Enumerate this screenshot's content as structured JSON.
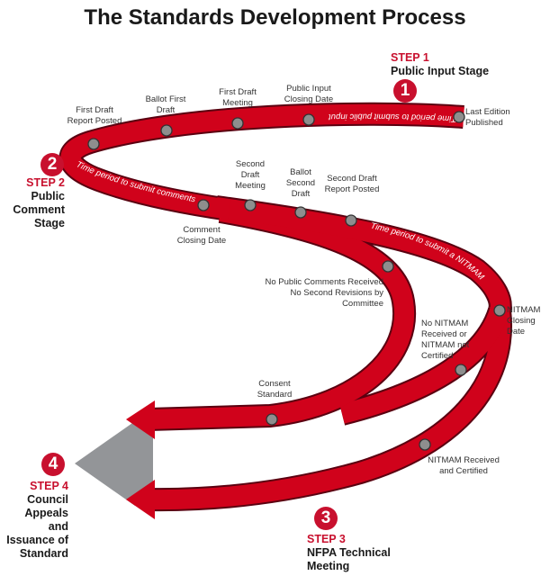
{
  "title": "The Standards Development Process",
  "colors": {
    "ribbon": "#d0021b",
    "outline": "#5a0010",
    "milestone": "#8e8e8e",
    "step_accent": "#c8102e",
    "target": "#939598"
  },
  "steps": [
    {
      "badge": "1",
      "label": "STEP 1",
      "name": "Public Input Stage"
    },
    {
      "badge": "2",
      "label": "STEP 2",
      "name": "Public Comment Stage"
    },
    {
      "badge": "3",
      "label": "STEP 3",
      "name": "NFPA Technical Meeting"
    },
    {
      "badge": "4",
      "label": "STEP 4",
      "name": "Council Appeals and Issuance of Standard"
    }
  ],
  "ribbon_text": {
    "public_input": "Time period to submit public input",
    "comments": "Time period to submit comments",
    "nitmam": "Time period to submit a NITMAM"
  },
  "milestones": {
    "last_edition": "Last Edition Published",
    "public_input_closing": "Public Input Closing Date",
    "first_draft_meeting": "First Draft Meeting",
    "ballot_first_draft": "Ballot First Draft",
    "first_draft_report": "First Draft Report Posted",
    "comment_closing": "Comment Closing Date",
    "second_draft_meeting": "Second Draft Meeting",
    "ballot_second_draft": "Ballot Second Draft",
    "second_draft_report": "Second Draft Report Posted",
    "no_public_comments": "No Public Comments Received No Second Revisions by Committee",
    "nitmam_closing": "NITMAM Closing Date",
    "no_nitmam": "No NITMAM Received or NITMAM not Certified",
    "consent_standard": "Consent Standard",
    "nitmam_received": "NITMAM Received and Certified"
  }
}
